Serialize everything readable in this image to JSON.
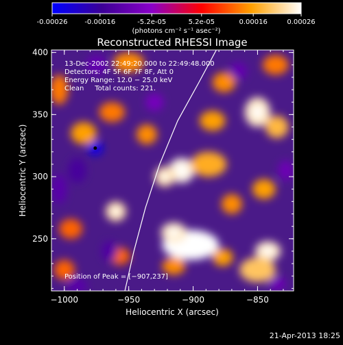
{
  "chart_data": {
    "type": "heatmap",
    "title": "Reconstructed RHESSI Image",
    "xlabel": "Heliocentric X (arcsec)",
    "ylabel": "Heliocentric Y (arcsec)",
    "xlim": [
      -1010,
      -822
    ],
    "ylim": [
      208,
      402
    ],
    "x_ticks": [
      -1000,
      -950,
      -900,
      -850
    ],
    "x_tick_labels": [
      "−1000",
      "−950",
      "−900",
      "−850"
    ],
    "y_ticks": [
      250,
      300,
      350,
      400
    ],
    "y_tick_labels": [
      "250",
      "300",
      "350",
      "400"
    ],
    "colorbar": {
      "range": [
        -0.00026,
        0.00026
      ],
      "ticks": [
        -0.00026,
        -0.00016,
        -5.2e-05,
        5.2e-05,
        0.00016,
        0.00026
      ],
      "tick_labels": [
        "-0.00026",
        "-0.00016",
        "-5.2e-05",
        "5.2e-05",
        "0.00016",
        "0.00026"
      ],
      "unit_label": "(photons cm⁻² s⁻¹ asec⁻²)",
      "colors": [
        "#0000ff",
        "#8a00c8",
        "#ff0000",
        "#ffa000",
        "#ffffff"
      ]
    },
    "annotations": [
      "13-Dec-2002 22:49:20.000 to 22:49:48.000",
      "Detectors: 4F 5F 6F 7F 8F, Att 0",
      "Energy Range: 12.0 − 25.0 keV",
      "Clean     Total counts: 221."
    ],
    "peak_label": "Position of Peak = [−907,237]",
    "limb_curve": [
      [
        -953,
        208
      ],
      [
        -946,
        240
      ],
      [
        -937,
        275
      ],
      [
        -926,
        310
      ],
      [
        -912,
        345
      ],
      [
        -896,
        375
      ],
      [
        -882,
        402
      ]
    ],
    "sources": [
      {
        "x": -902,
        "y": 245,
        "w": 22,
        "h": 12,
        "v": 1.0
      },
      {
        "x": -915,
        "y": 255,
        "w": 10,
        "h": 8,
        "v": 0.9
      },
      {
        "x": -842,
        "y": 240,
        "w": 10,
        "h": 8,
        "v": 0.9
      },
      {
        "x": -850,
        "y": 225,
        "w": 14,
        "h": 10,
        "v": 0.75
      },
      {
        "x": -909,
        "y": 305,
        "w": 10,
        "h": 10,
        "v": 0.95
      },
      {
        "x": -922,
        "y": 300,
        "w": 8,
        "h": 8,
        "v": 0.85
      },
      {
        "x": -850,
        "y": 352,
        "w": 10,
        "h": 12,
        "v": 0.9
      },
      {
        "x": -835,
        "y": 340,
        "w": 9,
        "h": 9,
        "v": 0.7
      },
      {
        "x": -960,
        "y": 272,
        "w": 8,
        "h": 8,
        "v": 0.85
      },
      {
        "x": -888,
        "y": 310,
        "w": 14,
        "h": 10,
        "v": 0.65
      },
      {
        "x": -885,
        "y": 345,
        "w": 10,
        "h": 8,
        "v": 0.6
      },
      {
        "x": -985,
        "y": 335,
        "w": 10,
        "h": 9,
        "v": 0.6
      },
      {
        "x": -963,
        "y": 352,
        "w": 10,
        "h": 8,
        "v": 0.5
      },
      {
        "x": -936,
        "y": 334,
        "w": 8,
        "h": 8,
        "v": 0.55
      },
      {
        "x": -950,
        "y": 392,
        "w": 12,
        "h": 8,
        "v": 0.55
      },
      {
        "x": -876,
        "y": 376,
        "w": 9,
        "h": 8,
        "v": 0.55
      },
      {
        "x": -870,
        "y": 278,
        "w": 8,
        "h": 8,
        "v": 0.55
      },
      {
        "x": -845,
        "y": 290,
        "w": 9,
        "h": 8,
        "v": 0.6
      },
      {
        "x": -836,
        "y": 390,
        "w": 10,
        "h": 8,
        "v": 0.5
      },
      {
        "x": -1004,
        "y": 370,
        "w": 7,
        "h": 12,
        "v": 0.5
      },
      {
        "x": -995,
        "y": 258,
        "w": 9,
        "h": 8,
        "v": 0.45
      },
      {
        "x": -915,
        "y": 228,
        "w": 9,
        "h": 7,
        "v": 0.55
      },
      {
        "x": -1000,
        "y": 225,
        "w": 8,
        "h": 8,
        "v": 0.45
      },
      {
        "x": -957,
        "y": 236,
        "w": 8,
        "h": 7,
        "v": 0.45
      },
      {
        "x": -877,
        "y": 235,
        "w": 8,
        "h": 7,
        "v": 0.6
      },
      {
        "x": -976,
        "y": 323,
        "w": 6,
        "h": 6,
        "v": -0.9
      },
      {
        "x": -990,
        "y": 305,
        "w": 7,
        "h": 10,
        "v": -0.55
      },
      {
        "x": -965,
        "y": 240,
        "w": 6,
        "h": 8,
        "v": -0.5
      },
      {
        "x": -975,
        "y": 390,
        "w": 8,
        "h": 8,
        "v": -0.4
      },
      {
        "x": -1004,
        "y": 290,
        "w": 6,
        "h": 12,
        "v": -0.45
      },
      {
        "x": -865,
        "y": 385,
        "w": 7,
        "h": 7,
        "v": -0.4
      },
      {
        "x": -930,
        "y": 360,
        "w": 7,
        "h": 7,
        "v": -0.3
      },
      {
        "x": -828,
        "y": 305,
        "w": 6,
        "h": 8,
        "v": -0.35
      },
      {
        "x": -990,
        "y": 212,
        "w": 8,
        "h": 6,
        "v": -0.45
      },
      {
        "x": -835,
        "y": 214,
        "w": 7,
        "h": 6,
        "v": -0.35
      }
    ]
  },
  "timestamp": "21-Apr-2013 18:25"
}
